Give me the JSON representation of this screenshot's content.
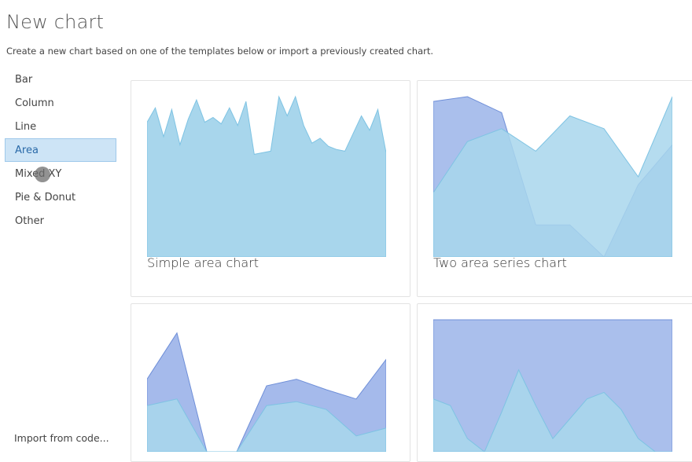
{
  "header": {
    "title": "New chart",
    "subtitle": "Create a new chart based on one of the templates below or import a previously created chart."
  },
  "sidebar": {
    "items": [
      {
        "label": "Bar",
        "name": "bar"
      },
      {
        "label": "Column",
        "name": "column"
      },
      {
        "label": "Line",
        "name": "line"
      },
      {
        "label": "Area",
        "name": "area",
        "active": true
      },
      {
        "label": "Mixed XY",
        "name": "mixed-xy"
      },
      {
        "label": "Pie & Donut",
        "name": "pie-donut"
      },
      {
        "label": "Other",
        "name": "other"
      }
    ],
    "import_label": "Import from code..."
  },
  "colors": {
    "light_area": "#a8d6ec",
    "light_stroke": "#7ec3e3",
    "dark_area": "#8ea9e6",
    "dark_stroke": "#6f8fd8",
    "active_bg": "#cde4f6"
  },
  "templates": [
    {
      "label": "Simple area chart",
      "chart_data": {
        "type": "area",
        "ylim": [
          0,
          100
        ],
        "series": [
          {
            "values": [
              84,
              93,
              75,
              92,
              70,
              86,
              98,
              84,
              87,
              83,
              93,
              82,
              97,
              64,
              65,
              66,
              100,
              88,
              100,
              82,
              71,
              74,
              69,
              67,
              66,
              77,
              88,
              79,
              92,
              65
            ]
          }
        ]
      }
    },
    {
      "label": "Two area series chart",
      "chart_data": {
        "type": "area",
        "ylim": [
          0,
          100
        ],
        "series": [
          {
            "values": [
              97,
              100,
              90,
              20,
              20,
              0,
              45,
              70
            ]
          },
          {
            "values": [
              40,
              72,
              80,
              66,
              88,
              80,
              50,
              100
            ]
          }
        ]
      }
    },
    {
      "label": "",
      "chart_data": {
        "type": "area",
        "ylim": [
          0,
          100
        ],
        "series": [
          {
            "values": [
              55,
              90,
              0,
              0,
              50,
              55,
              47,
              40,
              70
            ]
          },
          {
            "values": [
              35,
              40,
              0,
              0,
              35,
              38,
              32,
              12,
              18
            ]
          }
        ]
      }
    },
    {
      "label": "",
      "chart_data": {
        "type": "area",
        "ylim": [
          0,
          100
        ],
        "series": [
          {
            "values": [
              100,
              100,
              100,
              100,
              100,
              100,
              100,
              100,
              100,
              100,
              100,
              100,
              100,
              100,
              100
            ]
          },
          {
            "values": [
              40,
              35,
              10,
              0,
              30,
              62,
              35,
              10,
              25,
              40,
              45,
              32,
              10,
              0,
              0
            ]
          }
        ]
      }
    }
  ]
}
